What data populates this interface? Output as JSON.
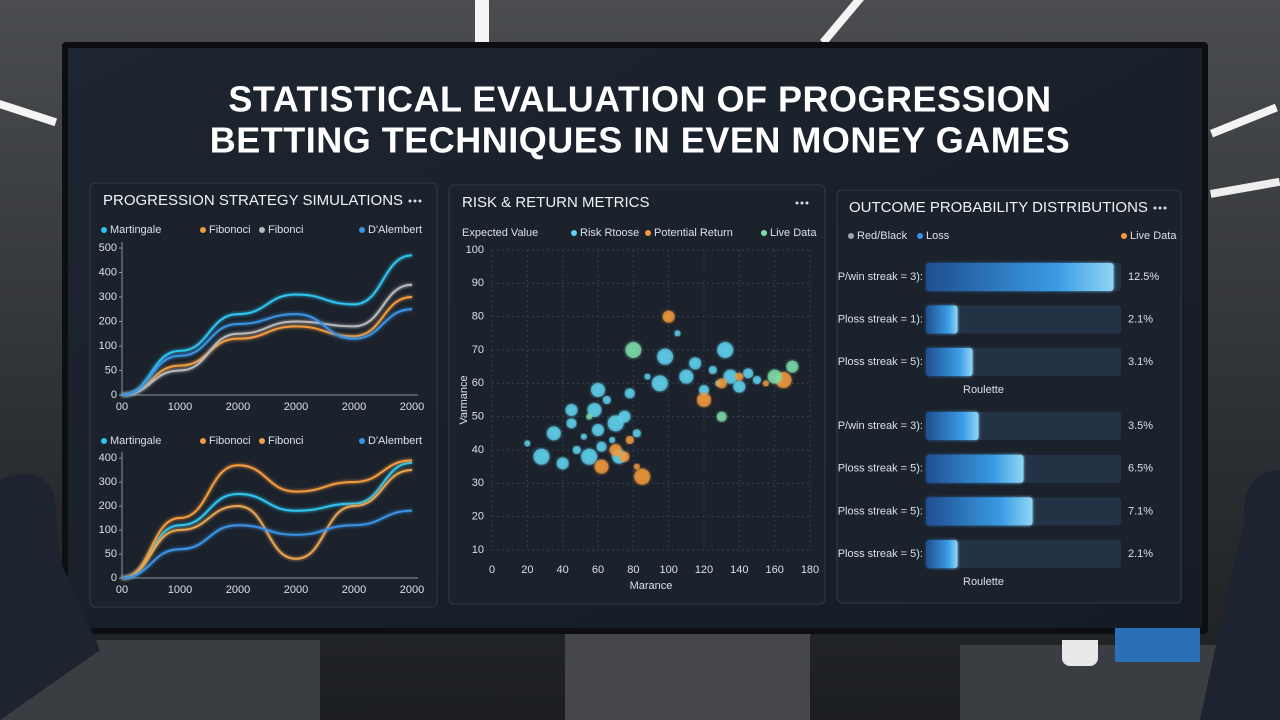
{
  "title_lines": [
    "STATISTICAL EVALUATION OF PROGRESSION",
    "BETTING TECHNIQUES IN EVEN MONEY GAMES"
  ],
  "chart_data": [
    {
      "type": "line",
      "title": "PROGRESSION STRATEGY SIMULATIONS",
      "categories": [
        "00",
        "1000",
        "2000",
        "2000",
        "2000",
        "2000"
      ],
      "ylim": [
        0,
        500
      ],
      "yticks": [
        0,
        50,
        100,
        200,
        300,
        400,
        500
      ],
      "series": [
        {
          "name": "Martingale",
          "color": "#2ec4ef",
          "values": [
            0,
            90,
            230,
            310,
            270,
            470
          ]
        },
        {
          "name": "Fibonoci",
          "color": "#f39a3c",
          "values": [
            0,
            60,
            130,
            180,
            140,
            300
          ]
        },
        {
          "name": "Fibonci",
          "color": "#b9b9b9",
          "values": [
            0,
            50,
            150,
            200,
            180,
            350
          ]
        },
        {
          "name": "D'Alembert",
          "color": "#3a93e6",
          "values": [
            0,
            80,
            190,
            230,
            130,
            250
          ]
        }
      ]
    },
    {
      "type": "line",
      "categories": [
        "00",
        "1000",
        "2000",
        "2000",
        "2000",
        "2000"
      ],
      "ylim": [
        0,
        400
      ],
      "yticks": [
        0,
        50,
        100,
        200,
        300,
        400
      ],
      "series": [
        {
          "name": "Martingale",
          "color": "#2ec4ef",
          "values": [
            0,
            120,
            250,
            180,
            210,
            380
          ]
        },
        {
          "name": "Fibonoci",
          "color": "#f39a3c",
          "values": [
            0,
            150,
            370,
            260,
            300,
            390
          ]
        },
        {
          "name": "Fibonci",
          "color": "#e8a450",
          "values": [
            0,
            100,
            200,
            40,
            200,
            350
          ]
        },
        {
          "name": "D'Alembert",
          "color": "#3a93e6",
          "values": [
            0,
            60,
            120,
            90,
            120,
            180
          ]
        }
      ]
    },
    {
      "type": "scatter",
      "title": "RISK & RETURN METRICS",
      "legend_title": "Expected Value",
      "x_label": "Marance",
      "y_label": "Varmance",
      "xlim": [
        0,
        180
      ],
      "xticks": [
        0,
        20,
        40,
        60,
        80,
        100,
        120,
        140,
        160,
        180
      ],
      "ylim": [
        10,
        100
      ],
      "yticks": [
        10,
        20,
        30,
        40,
        50,
        60,
        70,
        80,
        90,
        100
      ],
      "grid": true,
      "series": [
        {
          "name": "Risk Rtoose",
          "color": "#5fd3f0",
          "x": [
            20,
            28,
            35,
            40,
            45,
            48,
            52,
            55,
            58,
            60,
            62,
            65,
            68,
            70,
            72,
            75,
            78,
            82,
            88,
            95,
            110,
            115,
            120,
            125,
            128,
            132,
            135,
            140,
            145,
            150,
            105,
            98,
            60,
            45
          ],
          "y": [
            42,
            38,
            45,
            36,
            48,
            40,
            44,
            38,
            52,
            46,
            41,
            55,
            43,
            48,
            38,
            50,
            57,
            45,
            62,
            60,
            62,
            66,
            58,
            64,
            60,
            70,
            62,
            59,
            63,
            61,
            75,
            68,
            58,
            52
          ]
        },
        {
          "name": "Potential Return",
          "color": "#f39a3c",
          "x": [
            70,
            75,
            78,
            82,
            85,
            62,
            100,
            130,
            140,
            155,
            165,
            120
          ],
          "y": [
            40,
            38,
            43,
            35,
            32,
            35,
            80,
            60,
            62,
            60,
            61,
            55
          ]
        },
        {
          "name": "Live Data",
          "color": "#7ee0a8",
          "x": [
            55,
            80,
            160,
            170,
            130
          ],
          "y": [
            50,
            70,
            62,
            65,
            50
          ]
        }
      ]
    },
    {
      "type": "bar",
      "title": "OUTCOME PROBABILITY DISTRIBUTIONS",
      "legend": [
        {
          "name": "Red/Black",
          "color": "#9aa7b4"
        },
        {
          "name": "Loss",
          "color": "#3a93e6"
        },
        {
          "name": "Live Data",
          "color": "#f39a3c"
        }
      ],
      "x_label": "Roulette",
      "xlim": [
        0,
        13
      ],
      "color": "#3fa9e8",
      "categories": [
        "P/win streak = 3):",
        "Ploss streak = 1):",
        "Ploss streak = 5):"
      ],
      "values": [
        12.5,
        2.1,
        3.1
      ],
      "value_labels": [
        "12.5%",
        "2.1%",
        "3.1%"
      ]
    },
    {
      "type": "bar",
      "x_label": "Roulette",
      "xlim": [
        0,
        13
      ],
      "color": "#3fa9e8",
      "categories": [
        "P/win streak = 3):",
        "Ploss streak = 5):",
        "Ploss streak = 5):",
        "Ploss streak = 5):"
      ],
      "values": [
        3.5,
        6.5,
        7.1,
        2.1
      ],
      "value_labels": [
        "3.5%",
        "6.5%",
        "7.1%",
        "2.1%"
      ]
    }
  ]
}
